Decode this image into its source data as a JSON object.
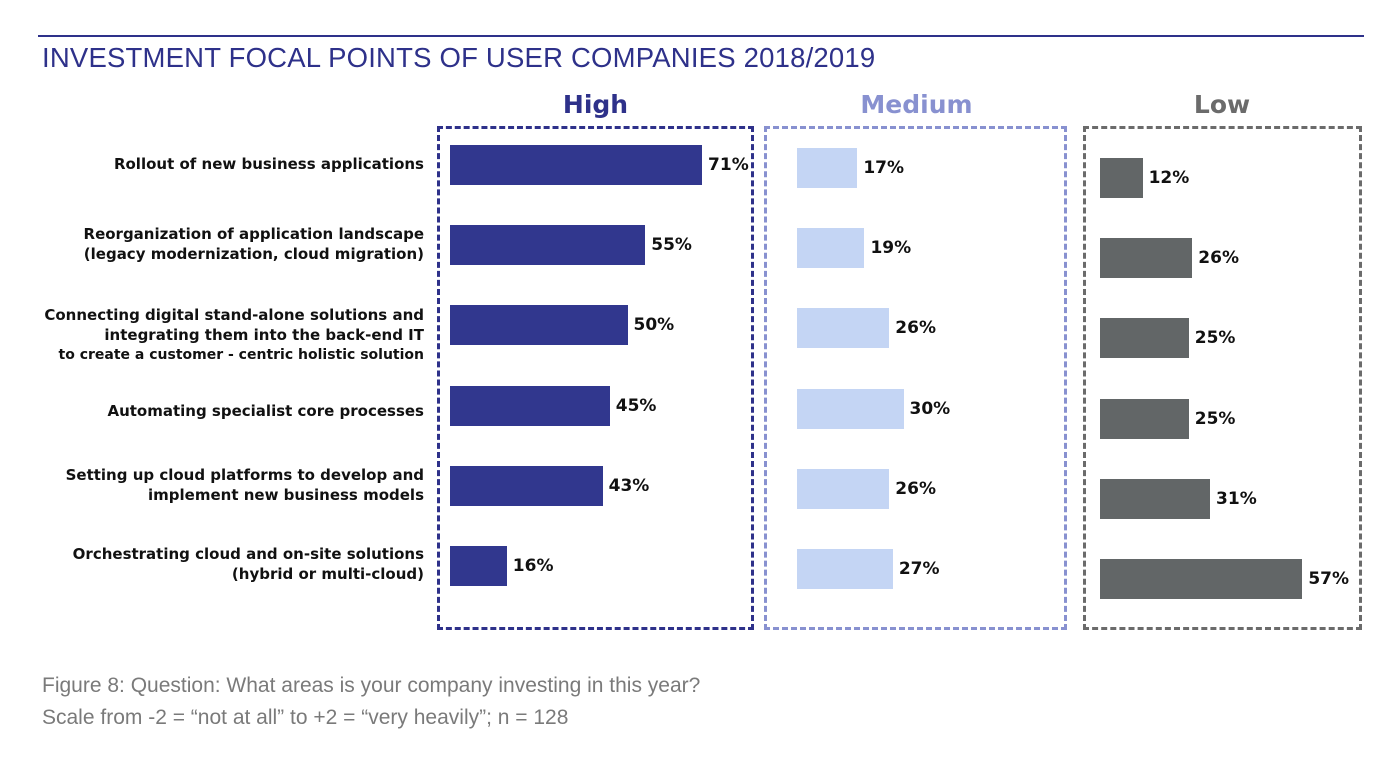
{
  "title": "INVESTMENT FOCAL POINTS OF USER COMPANIES 2018/2019",
  "caption": {
    "line1": "Figure 8: Question: What areas is your company investing in this year?",
    "line2": "Scale from -2 = “not at all” to +2 = “very heavily”; n = 128"
  },
  "chart_data": {
    "type": "bar",
    "orientation": "horizontal",
    "title": "INVESTMENT FOCAL POINTS OF USER COMPANIES 2018/2019",
    "categories": [
      [
        "Rollout of new business applications"
      ],
      [
        "Reorganization of application landscape",
        "(legacy modernization, cloud migration)"
      ],
      [
        "Connecting digital stand-alone solutions and",
        "integrating them into the back-end IT",
        "to create a customer - centric holistic solution"
      ],
      [
        "Automating specialist core processes"
      ],
      [
        "Setting up cloud platforms to develop and",
        "implement new business models"
      ],
      [
        "Orchestrating cloud and on-site solutions",
        "(hybrid or multi-cloud)"
      ]
    ],
    "series": [
      {
        "name": "High",
        "color": "#31378e",
        "header_color": "#2e318a",
        "values": [
          71,
          55,
          50,
          45,
          43,
          16
        ],
        "labels": [
          "71%",
          "55%",
          "50%",
          "45%",
          "43%",
          "16%"
        ]
      },
      {
        "name": "Medium",
        "color": "#c4d5f4",
        "header_color": "#8891d0",
        "values": [
          17,
          19,
          26,
          30,
          26,
          27
        ],
        "labels": [
          "17%",
          "19%",
          "26%",
          "30%",
          "26%",
          "27%"
        ]
      },
      {
        "name": "Low",
        "color": "#626667",
        "header_color": "#6b6b6b",
        "values": [
          12,
          26,
          25,
          25,
          31,
          57
        ],
        "labels": [
          "12%",
          "26%",
          "25%",
          "25%",
          "31%",
          "57%"
        ]
      }
    ],
    "unit": "%",
    "xlim": [
      0,
      100
    ]
  }
}
